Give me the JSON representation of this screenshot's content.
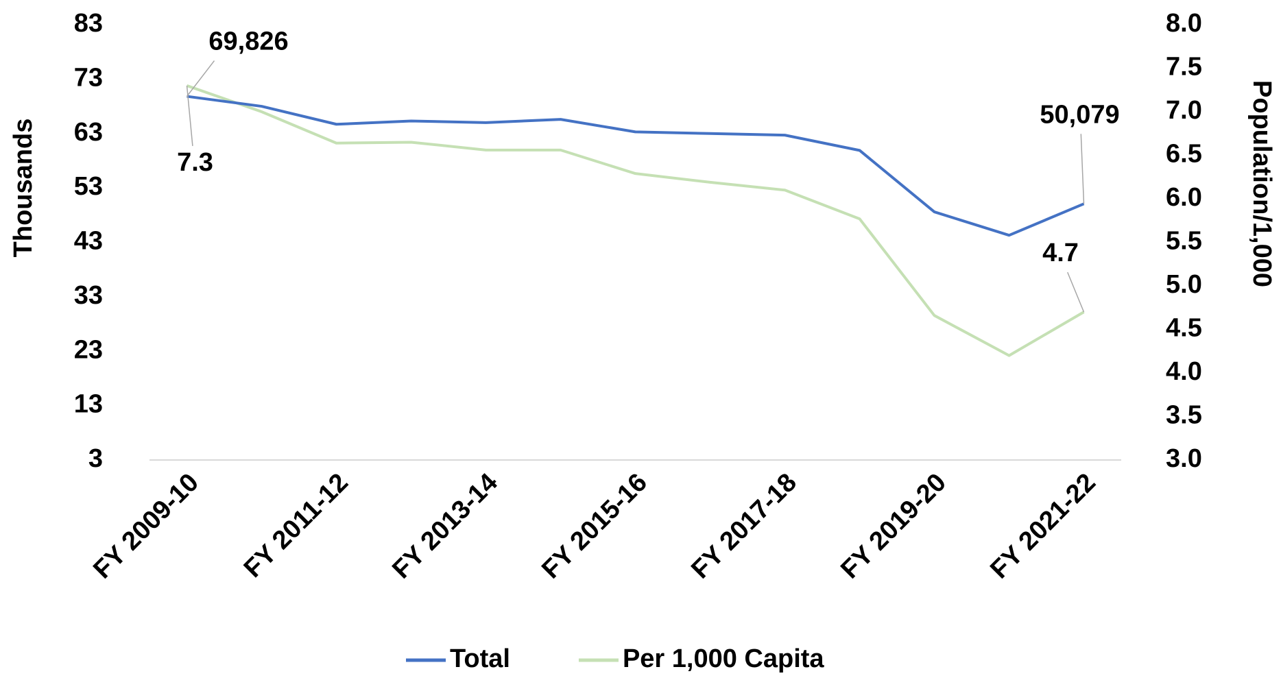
{
  "chart_data": {
    "type": "line",
    "categories": [
      "FY 2009-10",
      null,
      "FY 2011-12",
      null,
      "FY 2013-14",
      null,
      "FY 2015-16",
      null,
      "FY 2017-18",
      null,
      "FY 2019-20",
      null,
      "FY 2021-22"
    ],
    "ylabel": "Thousands",
    "y2label": "Population/1,000",
    "ylim": [
      3,
      83
    ],
    "yticks": [
      3,
      13,
      23,
      33,
      43,
      53,
      63,
      73,
      83
    ],
    "y2lim": [
      3,
      8
    ],
    "y2ticks": [
      {
        "value": 3,
        "label": "3.0"
      },
      3.5,
      {
        "value": 4,
        "label": "4.0"
      },
      4.5,
      {
        "value": 5,
        "label": "5.0"
      },
      5.5,
      {
        "value": 6,
        "label": "6.0"
      },
      6.5,
      {
        "value": 7,
        "label": "7.0"
      },
      7.5,
      {
        "value": 8,
        "label": "8.0"
      }
    ],
    "legend": "bottom",
    "series": [
      {
        "name": "Total",
        "color": "#4472c4",
        "values": [
          69.826,
          68.0,
          64.7,
          65.3,
          65.0,
          65.6,
          63.3,
          63.0,
          62.7,
          59.9,
          48.6,
          44.3,
          50.079
        ],
        "value_labels": [
          "69,826",
          null,
          null,
          null,
          null,
          null,
          null,
          null,
          null,
          null,
          null,
          null,
          "50,079"
        ]
      },
      {
        "name": "Per 1,000 Capita",
        "color": "#c5e0b4",
        "axis": "y2",
        "values": [
          7.3,
          7.0,
          6.64,
          6.65,
          6.56,
          6.56,
          6.29,
          6.19,
          6.1,
          5.77,
          4.66,
          4.2,
          4.7
        ],
        "value_labels": [
          "7.3",
          null,
          null,
          null,
          null,
          null,
          null,
          null,
          null,
          null,
          null,
          null,
          "4.7"
        ]
      }
    ]
  }
}
